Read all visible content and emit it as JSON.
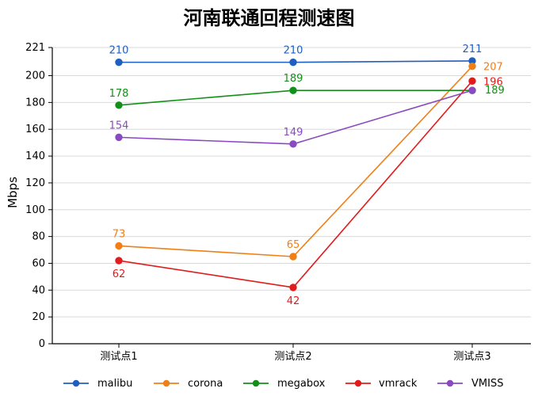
{
  "chart_data": {
    "type": "line",
    "title": "河南联通回程测速图",
    "xlabel": "",
    "ylabel": "Mbps",
    "categories": [
      "测试点1",
      "测试点2",
      "测试点3"
    ],
    "yticks": [
      0,
      20,
      40,
      60,
      80,
      100,
      120,
      140,
      160,
      180,
      200,
      221
    ],
    "ylim": [
      0,
      221
    ],
    "grid": "horizontal",
    "legend_position": "bottom",
    "series": [
      {
        "name": "malibu",
        "color": "#1f5fbf",
        "values": [
          210,
          210,
          211
        ],
        "labels": [
          "210",
          "210",
          "211"
        ]
      },
      {
        "name": "corona",
        "color": "#f07f17",
        "values": [
          73,
          65,
          207
        ],
        "labels": [
          "73",
          "65",
          "207"
        ]
      },
      {
        "name": "megabox",
        "color": "#139019",
        "values": [
          178,
          189,
          189
        ],
        "labels": [
          "178",
          "189",
          "189"
        ]
      },
      {
        "name": "vmrack",
        "color": "#e01c1c",
        "values": [
          62,
          42,
          196
        ],
        "labels": [
          "62",
          "42",
          "196"
        ]
      },
      {
        "name": "VMISS",
        "color": "#8a49c2",
        "values": [
          154,
          149,
          189
        ],
        "labels": [
          "154",
          "149",
          "189"
        ]
      }
    ]
  }
}
